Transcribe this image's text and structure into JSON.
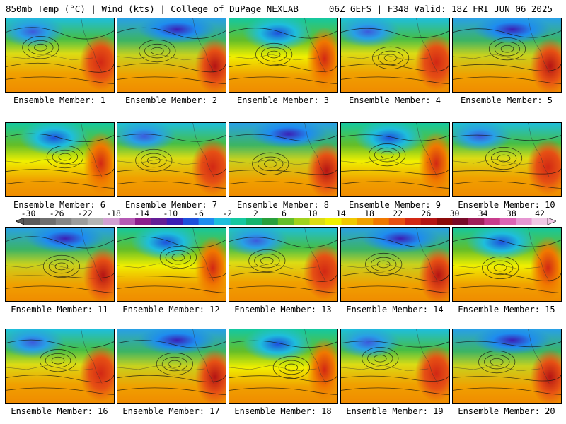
{
  "header": {
    "left": "850mb Temp (°C) | Wind (kts) | College of DuPage NEXLAB",
    "right": "06Z GEFS | F348 Valid: 18Z FRI JUN 06 2025"
  },
  "panels": [
    "Ensemble Member: 1",
    "Ensemble Member: 2",
    "Ensemble Member: 3",
    "Ensemble Member: 4",
    "Ensemble Member: 5",
    "Ensemble Member: 6",
    "Ensemble Member: 7",
    "Ensemble Member: 8",
    "Ensemble Member: 9",
    "Ensemble Member: 10",
    "Ensemble Member: 11",
    "Ensemble Member: 12",
    "Ensemble Member: 13",
    "Ensemble Member: 14",
    "Ensemble Member: 15",
    "Ensemble Member: 16",
    "Ensemble Member: 17",
    "Ensemble Member: 18",
    "Ensemble Member: 19",
    "Ensemble Member: 20"
  ],
  "scale": {
    "ticks": [
      "-30",
      "-26",
      "-22",
      "-18",
      "-14",
      "-10",
      "-6",
      "-2",
      "2",
      "6",
      "10",
      "14",
      "18",
      "22",
      "26",
      "30",
      "34",
      "38",
      "42"
    ],
    "colors": [
      "#5a5a5a",
      "#6e6e6e",
      "#858585",
      "#9c9c9c",
      "#b4b4b4",
      "#d2a0d2",
      "#b45ab4",
      "#8c1e8c",
      "#641e96",
      "#3c1eb4",
      "#1e50dc",
      "#1e8cf0",
      "#1ebedc",
      "#14c8a0",
      "#14b46e",
      "#28a03c",
      "#64be28",
      "#a0d21e",
      "#dcdc14",
      "#f0f000",
      "#f0c800",
      "#f0a000",
      "#f07800",
      "#e65014",
      "#d22814",
      "#b41414",
      "#8c0a0a",
      "#780a28",
      "#a01e5a",
      "#c83c8c",
      "#dc64b4",
      "#e696d2",
      "#f0c8e6"
    ]
  }
}
